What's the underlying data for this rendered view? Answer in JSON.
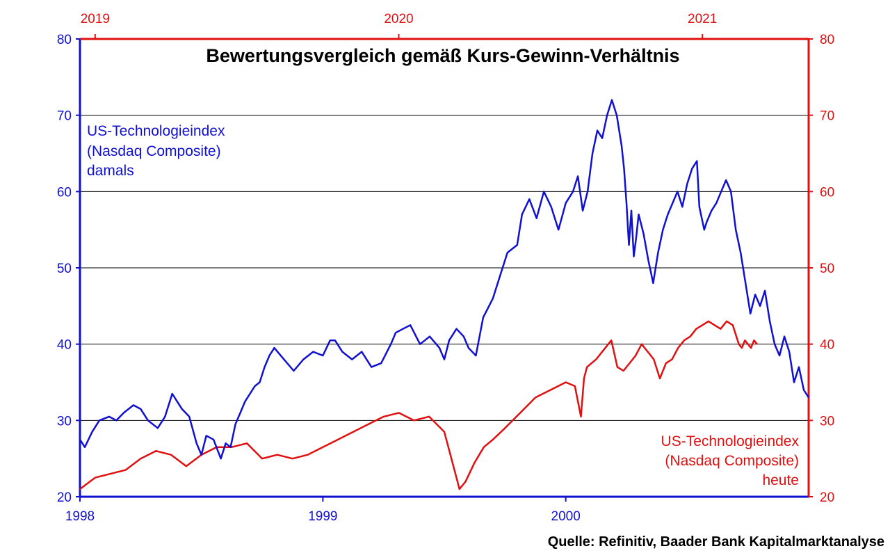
{
  "chart_data": {
    "type": "line",
    "title": "Bewertungsvergleich gemäß Kurs-Gewinn-Verhältnis",
    "source": "Quelle: Refinitiv, Baader Bank Kapitalmarktanalyse",
    "x_bottom": {
      "ticks": [
        "1998",
        "1999",
        "2000"
      ],
      "range": [
        1998,
        2001
      ]
    },
    "x_top": {
      "ticks": [
        "2019",
        "2020",
        "2021"
      ],
      "range": [
        2018.95,
        2021.35
      ]
    },
    "y_left": {
      "ticks": [
        "20",
        "30",
        "40",
        "50",
        "60",
        "70",
        "80"
      ],
      "range": [
        20,
        80
      ]
    },
    "y_right": {
      "ticks": [
        "20",
        "30",
        "40",
        "50",
        "60",
        "70",
        "80"
      ],
      "range": [
        20,
        80
      ]
    },
    "grid": true,
    "colors": {
      "blue": "#1010d0",
      "red": "#e01010",
      "grid": "#000000"
    },
    "series": [
      {
        "id": "blue",
        "label_lines": [
          "US-Technologieindex",
          "(Nasdaq Composite)",
          "damals"
        ],
        "axis": "bottom-left",
        "x": [
          1998.0,
          1998.02,
          1998.05,
          1998.08,
          1998.12,
          1998.15,
          1998.18,
          1998.22,
          1998.25,
          1998.28,
          1998.32,
          1998.35,
          1998.38,
          1998.42,
          1998.45,
          1998.48,
          1998.5,
          1998.52,
          1998.55,
          1998.58,
          1998.6,
          1998.62,
          1998.64,
          1998.66,
          1998.68,
          1998.7,
          1998.72,
          1998.74,
          1998.76,
          1998.78,
          1998.8,
          1998.84,
          1998.88,
          1998.92,
          1998.96,
          1999.0,
          1999.03,
          1999.05,
          1999.08,
          1999.12,
          1999.16,
          1999.2,
          1999.24,
          1999.28,
          1999.3,
          1999.33,
          1999.36,
          1999.4,
          1999.44,
          1999.48,
          1999.5,
          1999.52,
          1999.55,
          1999.58,
          1999.6,
          1999.63,
          1999.66,
          1999.7,
          1999.73,
          1999.76,
          1999.8,
          1999.82,
          1999.85,
          1999.88,
          1999.91,
          1999.94,
          1999.97,
          2000.0,
          2000.03,
          2000.05,
          2000.07,
          2000.09,
          2000.11,
          2000.13,
          2000.15,
          2000.17,
          2000.19,
          2000.21,
          2000.23,
          2000.24,
          2000.25,
          2000.26,
          2000.27,
          2000.28,
          2000.29,
          2000.3,
          2000.32,
          2000.34,
          2000.36,
          2000.38,
          2000.4,
          2000.42,
          2000.44,
          2000.46,
          2000.48,
          2000.5,
          2000.52,
          2000.54,
          2000.55,
          2000.57,
          2000.58,
          2000.6,
          2000.62,
          2000.64,
          2000.66,
          2000.68,
          2000.7,
          2000.72,
          2000.74,
          2000.76,
          2000.78,
          2000.8,
          2000.82,
          2000.84,
          2000.86,
          2000.88,
          2000.9,
          2000.92,
          2000.94,
          2000.96,
          2000.98,
          2001.0
        ],
        "y": [
          27.5,
          26.5,
          28.5,
          30.0,
          30.5,
          30.0,
          31.0,
          32.0,
          31.5,
          30.0,
          29.0,
          30.5,
          33.5,
          31.5,
          30.5,
          27.0,
          25.5,
          28.0,
          27.5,
          25.0,
          27.0,
          26.5,
          29.5,
          31.0,
          32.5,
          33.5,
          34.5,
          35.0,
          37.0,
          38.5,
          39.5,
          38.0,
          36.5,
          38.0,
          39.0,
          38.5,
          40.5,
          40.5,
          39.0,
          38.0,
          39.0,
          37.0,
          37.5,
          40.0,
          41.5,
          42.0,
          42.5,
          40.0,
          41.0,
          39.5,
          38.0,
          40.5,
          42.0,
          41.0,
          39.5,
          38.5,
          43.5,
          46.0,
          49.0,
          52.0,
          53.0,
          57.0,
          59.0,
          56.5,
          60.0,
          58.0,
          55.0,
          58.5,
          60.0,
          62.0,
          57.5,
          60.0,
          65.0,
          68.0,
          67.0,
          70.0,
          72.0,
          70.0,
          66.0,
          63.0,
          58.5,
          53.0,
          57.5,
          51.5,
          54.0,
          57.0,
          54.5,
          51.0,
          48.0,
          52.0,
          55.0,
          57.0,
          58.5,
          60.0,
          58.0,
          61.0,
          63.0,
          64.0,
          58.0,
          55.0,
          56.0,
          57.5,
          58.5,
          60.0,
          61.5,
          60.0,
          55.0,
          52.0,
          48.0,
          44.0,
          46.5,
          45.0,
          47.0,
          43.0,
          40.0,
          38.5,
          41.0,
          39.0,
          35.0,
          37.0,
          34.0,
          33.0
        ]
      },
      {
        "id": "red",
        "label_lines": [
          "US-Technologieindex",
          "(Nasdaq Composite)",
          "heute"
        ],
        "axis": "top-right",
        "x": [
          2018.95,
          2019.0,
          2019.05,
          2019.1,
          2019.15,
          2019.2,
          2019.25,
          2019.3,
          2019.35,
          2019.4,
          2019.45,
          2019.5,
          2019.55,
          2019.6,
          2019.65,
          2019.7,
          2019.75,
          2019.8,
          2019.85,
          2019.9,
          2019.95,
          2020.0,
          2020.05,
          2020.1,
          2020.15,
          2020.18,
          2020.2,
          2020.22,
          2020.25,
          2020.28,
          2020.31,
          2020.35,
          2020.4,
          2020.45,
          2020.5,
          2020.55,
          2020.58,
          2020.6,
          2020.61,
          2020.62,
          2020.65,
          2020.7,
          2020.72,
          2020.74,
          2020.76,
          2020.78,
          2020.8,
          2020.82,
          2020.84,
          2020.86,
          2020.88,
          2020.9,
          2020.92,
          2020.94,
          2020.96,
          2020.98,
          2021.0,
          2021.02,
          2021.04,
          2021.06,
          2021.08,
          2021.1,
          2021.12,
          2021.13,
          2021.14,
          2021.15,
          2021.16,
          2021.17,
          2021.18
        ],
        "y": [
          21.0,
          22.5,
          23.0,
          23.5,
          25.0,
          26.0,
          25.5,
          24.0,
          25.5,
          26.5,
          26.5,
          27.0,
          25.0,
          25.5,
          25.0,
          25.5,
          26.5,
          27.5,
          28.5,
          29.5,
          30.5,
          31.0,
          30.0,
          30.5,
          28.5,
          24.0,
          21.0,
          22.0,
          24.5,
          26.5,
          27.5,
          29.0,
          31.0,
          33.0,
          34.0,
          35.0,
          34.5,
          30.5,
          35.5,
          37.0,
          38.0,
          40.5,
          37.0,
          36.5,
          37.5,
          38.5,
          40.0,
          39.0,
          38.0,
          35.5,
          37.5,
          38.0,
          39.5,
          40.5,
          41.0,
          42.0,
          42.5,
          43.0,
          42.5,
          42.0,
          43.0,
          42.5,
          40.0,
          39.5,
          40.5,
          40.0,
          39.5,
          40.5,
          40.0
        ]
      }
    ]
  }
}
